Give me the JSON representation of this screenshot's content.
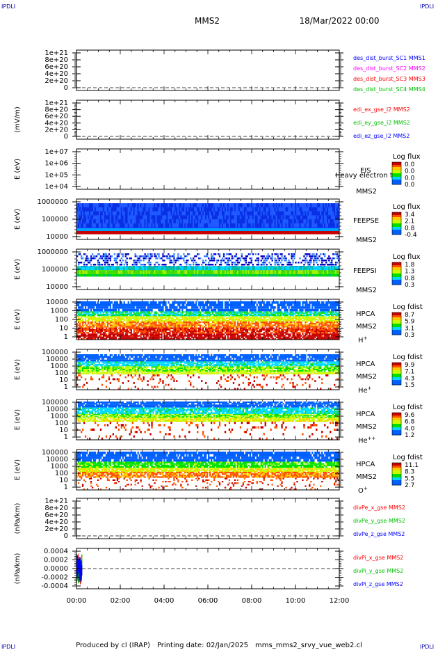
{
  "header": {
    "corner_label": "IPDLI",
    "spacecraft": "MMS2",
    "datetime": "18/Mar/2022 00:00"
  },
  "footer": {
    "produced_by": "Produced by cl (IRAP)",
    "printing_date": "Printing date: 02/Jan/2025",
    "file": "mms_mms2_srvy_vue_web2.cl"
  },
  "x_axis": {
    "ticks": [
      "00:00",
      "02:00",
      "04:00",
      "06:00",
      "08:00",
      "10:00",
      "12:00"
    ],
    "range_hours": [
      0,
      12
    ]
  },
  "chart_data": [
    {
      "type": "line",
      "panel": "des-dist-burst",
      "ylabel": "",
      "yticks": [
        "1e+21",
        "8e+20",
        "6e+20",
        "4e+20",
        "2e+20",
        "0"
      ],
      "ylim": [
        0,
        1e+21
      ],
      "series": [
        {
          "name": "des_dist_burst_SC1 MMS1",
          "color": "#0000ff",
          "values": []
        },
        {
          "name": "des_dist_burst_SC2 MMS2",
          "color": "#ff00ff",
          "values": []
        },
        {
          "name": "des_dist_burst_SC3 MMS3",
          "color": "#ff0000",
          "values": []
        },
        {
          "name": "des_dist_burst_SC4 MMS4",
          "color": "#00c000",
          "values": []
        }
      ],
      "zero_line": true
    },
    {
      "type": "line",
      "panel": "edi",
      "ylabel": "(mV/m)",
      "yticks": [
        "1e+21",
        "8e+20",
        "6e+20",
        "4e+20",
        "2e+20",
        "0"
      ],
      "ylim": [
        0,
        1e+21
      ],
      "series": [
        {
          "name": "edi_ex_gse_l2 MMS2",
          "color": "#ff0000",
          "values": []
        },
        {
          "name": "edi_ey_gse_l2 MMS2",
          "color": "#00c000",
          "values": []
        },
        {
          "name": "edi_ez_gse_l2 MMS2",
          "color": "#0000ff",
          "values": []
        }
      ],
      "zero_line": true
    },
    {
      "type": "heatmap",
      "panel": "eis",
      "ylabel": "E (eV)",
      "yticks": [
        "1e+07",
        "1e+06",
        "1e+05",
        "1e+04"
      ],
      "ylim": [
        10000,
        10000000
      ],
      "yscale": "log",
      "labels": [
        "EIS",
        "Heavy electron to",
        "MMS2"
      ],
      "colorbar": {
        "title": "Log flux",
        "ticks": [
          "0.0",
          "0.0",
          "0.0",
          "0.0"
        ]
      },
      "data": "empty"
    },
    {
      "type": "heatmap",
      "panel": "feeps-e",
      "ylabel": "E (eV)",
      "yticks": [
        "1000000",
        "100000",
        "10000"
      ],
      "ylim": [
        10000,
        1000000
      ],
      "yscale": "log",
      "labels": [
        "FEEPSE",
        "MMS2"
      ],
      "colorbar": {
        "title": "Log flux",
        "ticks": [
          "3.4",
          "2.1",
          "0.8",
          "-0.4"
        ]
      },
      "coverage_hours": [
        0,
        12
      ],
      "energy_bands_eV": [
        [
          40000,
          1000000,
          "blue"
        ],
        [
          30000,
          40000,
          "red"
        ]
      ]
    },
    {
      "type": "heatmap",
      "panel": "feeps-i",
      "ylabel": "E (eV)",
      "yticks": [
        "1000000",
        "100000",
        "10000"
      ],
      "ylim": [
        10000,
        1000000
      ],
      "yscale": "log",
      "labels": [
        "FEEPSI",
        "MMS2"
      ],
      "colorbar": {
        "title": "Log flux",
        "ticks": [
          "1.8",
          "1.3",
          "0.8",
          "0.3"
        ]
      },
      "coverage_hours": [
        0,
        12
      ],
      "energy_bands_eV": [
        [
          250000,
          800000,
          "sparse blue"
        ],
        [
          150000,
          250000,
          "cyan"
        ],
        [
          60000,
          150000,
          "green"
        ]
      ]
    },
    {
      "type": "heatmap",
      "panel": "hpca-h",
      "ylabel": "E (eV)",
      "yticks": [
        "10000",
        "1000",
        "100",
        "10",
        "1"
      ],
      "ylim": [
        1,
        40000
      ],
      "yscale": "log",
      "labels": [
        "HPCA",
        "MMS2",
        "H+"
      ],
      "colorbar": {
        "title": "Log fdist",
        "ticks": [
          "8.7",
          "5.9",
          "3.1",
          "0.3"
        ]
      },
      "coverage_hours": [
        0,
        12
      ]
    },
    {
      "type": "heatmap",
      "panel": "hpca-he",
      "ylabel": "E (eV)",
      "yticks": [
        "100000",
        "10000",
        "1000",
        "100",
        "10",
        "1"
      ],
      "ylim": [
        1,
        100000
      ],
      "yscale": "log",
      "labels": [
        "HPCA",
        "MMS2",
        "He+"
      ],
      "colorbar": {
        "title": "Log fdist",
        "ticks": [
          "9.9",
          "7.1",
          "4.3",
          "1.5"
        ]
      },
      "coverage_hours": [
        0,
        12
      ]
    },
    {
      "type": "heatmap",
      "panel": "hpca-hepp",
      "ylabel": "E (eV)",
      "yticks": [
        "100000",
        "10000",
        "1000",
        "100",
        "10",
        "1"
      ],
      "ylim": [
        1,
        100000
      ],
      "yscale": "log",
      "labels": [
        "HPCA",
        "MMS2",
        "He++"
      ],
      "colorbar": {
        "title": "Log fdist",
        "ticks": [
          "9.6",
          "6.8",
          "4.0",
          "1.2"
        ]
      },
      "coverage_hours": [
        0,
        12
      ]
    },
    {
      "type": "heatmap",
      "panel": "hpca-o",
      "ylabel": "E (eV)",
      "yticks": [
        "100000",
        "10000",
        "1000",
        "100",
        "10",
        "1"
      ],
      "ylim": [
        1,
        100000
      ],
      "yscale": "log",
      "labels": [
        "HPCA",
        "MMS2",
        "O+"
      ],
      "colorbar": {
        "title": "Log fdist",
        "ticks": [
          "11.1",
          "8.3",
          "5.5",
          "2.7"
        ]
      },
      "coverage_hours": [
        0,
        12
      ]
    },
    {
      "type": "line",
      "panel": "divpe",
      "ylabel": "(nPa/km)",
      "yticks": [
        "1e+21",
        "8e+20",
        "6e+20",
        "4e+20",
        "2e+20",
        "0"
      ],
      "ylim": [
        0,
        1e+21
      ],
      "series": [
        {
          "name": "divPe_x_gse MMS2",
          "color": "#ff0000",
          "values": []
        },
        {
          "name": "divPe_y_gse MMS2",
          "color": "#00c000",
          "values": []
        },
        {
          "name": "divPe_z_gse MMS2",
          "color": "#0000ff",
          "values": []
        }
      ],
      "zero_line": true
    },
    {
      "type": "line",
      "panel": "divpi",
      "ylabel": "(nPa/km)",
      "yticks": [
        "0.0004",
        "0.0002",
        "0.0000",
        "-0.0002",
        "-0.0004"
      ],
      "ylim": [
        -0.0005,
        0.0005
      ],
      "series": [
        {
          "name": "divPi_x_gse MMS2",
          "color": "#ff0000"
        },
        {
          "name": "divPi_y_gse MMS2",
          "color": "#00c000"
        },
        {
          "name": "divPi_z_gse MMS2",
          "color": "#0000ff"
        }
      ],
      "coverage_hours": [
        0,
        0.25
      ],
      "amplitude": 0.0005,
      "zero_line": true
    }
  ]
}
